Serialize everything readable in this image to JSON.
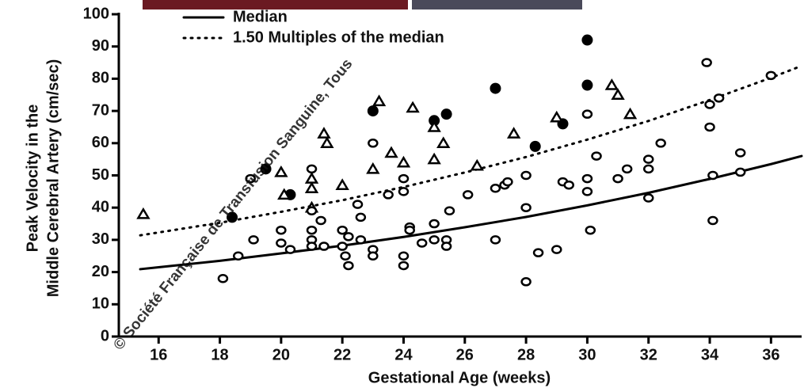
{
  "chart_data": {
    "type": "scatter",
    "x_label": "Gestational Age (weeks)",
    "y_label": [
      "Peak Velocity in the",
      "Middle Cerebral Artery (cm/sec)"
    ],
    "watermark": "© Société Française de Transfusion Sanguine, Tous",
    "xlim": [
      14.7,
      37
    ],
    "ylim": [
      0,
      100
    ],
    "xticks": [
      16,
      18,
      20,
      22,
      24,
      26,
      28,
      30,
      32,
      34,
      36
    ],
    "yticks": [
      0,
      10,
      20,
      30,
      40,
      50,
      60,
      70,
      80,
      90,
      100
    ],
    "legend": "top-left",
    "series": [
      {
        "name": "Median",
        "type": "line",
        "style": "solid",
        "color": "#000000",
        "x": [
          15.4,
          16,
          18,
          20,
          22,
          24,
          26,
          28,
          30,
          32,
          34,
          36,
          37
        ],
        "values": [
          20.9,
          21.5,
          23.5,
          25.8,
          28.2,
          30.9,
          33.9,
          37.1,
          40.7,
          44.6,
          48.9,
          53.5,
          56.0
        ]
      },
      {
        "name": "1.50 Multiples of the median",
        "type": "line",
        "style": "dotted",
        "color": "#000000",
        "x": [
          15.4,
          16,
          18,
          20,
          22,
          24,
          26,
          28,
          30,
          32,
          34,
          36,
          37
        ],
        "values": [
          31.4,
          32.3,
          35.3,
          38.7,
          42.3,
          46.4,
          50.9,
          55.7,
          61.1,
          66.9,
          73.4,
          80.3,
          84.0
        ]
      },
      {
        "type": "scatter",
        "marker": "filled-circle",
        "color": "#000000",
        "x": [
          19.5,
          20.3,
          18.4,
          23.0,
          25.0,
          25.4,
          27.0,
          28.3,
          29.2,
          30.0,
          30.0
        ],
        "values": [
          52,
          44,
          37,
          70,
          67,
          69,
          77,
          59,
          66,
          92,
          78
        ]
      },
      {
        "type": "scatter",
        "marker": "triangle",
        "color": "#000000",
        "x": [
          15.5,
          20.0,
          20.1,
          21.0,
          21.0,
          21.0,
          21.4,
          21.5,
          22.0,
          23.0,
          23.2,
          23.6,
          24.0,
          24.3,
          25.0,
          25.0,
          25.3,
          26.4,
          27.6,
          29.0,
          30.8,
          31.0,
          31.4
        ],
        "values": [
          38,
          51,
          44,
          49,
          46,
          40,
          63,
          60,
          47,
          52,
          73,
          57,
          54,
          71,
          55,
          65,
          60,
          53,
          63,
          68,
          78,
          75,
          69
        ]
      },
      {
        "type": "scatter",
        "marker": "open-circle",
        "color": "#000000",
        "x": [
          18.1,
          18.6,
          19.1,
          19.0,
          20.0,
          20.0,
          20.3,
          21.0,
          21.0,
          21.0,
          21.0,
          21.3,
          21.0,
          21.4,
          22.0,
          22.1,
          22.2,
          22.0,
          22.2,
          22.5,
          22.6,
          22.6,
          23.0,
          23.0,
          23.0,
          23.5,
          24.0,
          24.0,
          24.0,
          24.0,
          24.2,
          24.2,
          24.6,
          25.0,
          25.0,
          25.4,
          25.4,
          25.5,
          26.1,
          27.0,
          27.0,
          27.3,
          27.4,
          28.0,
          28.0,
          28.0,
          28.4,
          29.0,
          29.2,
          29.4,
          30.0,
          30.0,
          30.0,
          30.1,
          30.3,
          31.0,
          31.3,
          32.0,
          32.0,
          32.0,
          32.4,
          33.9,
          34.0,
          34.0,
          34.1,
          34.1,
          34.3,
          35.0,
          35.0,
          36.0
        ],
        "values": [
          18,
          25,
          30,
          49,
          33,
          29,
          27,
          30,
          33,
          52,
          28,
          36,
          39,
          28,
          33,
          25,
          22,
          28,
          31,
          41,
          37,
          30,
          60,
          27,
          25,
          44,
          49,
          45,
          25,
          22,
          34,
          33,
          29,
          30,
          35,
          30,
          28,
          39,
          44,
          46,
          30,
          47,
          48,
          40,
          17,
          50,
          26,
          27,
          48,
          47,
          49,
          45,
          69,
          33,
          56,
          49,
          52,
          55,
          52,
          43,
          60,
          85,
          72,
          65,
          50,
          36,
          74,
          57,
          51,
          81
        ]
      }
    ]
  }
}
